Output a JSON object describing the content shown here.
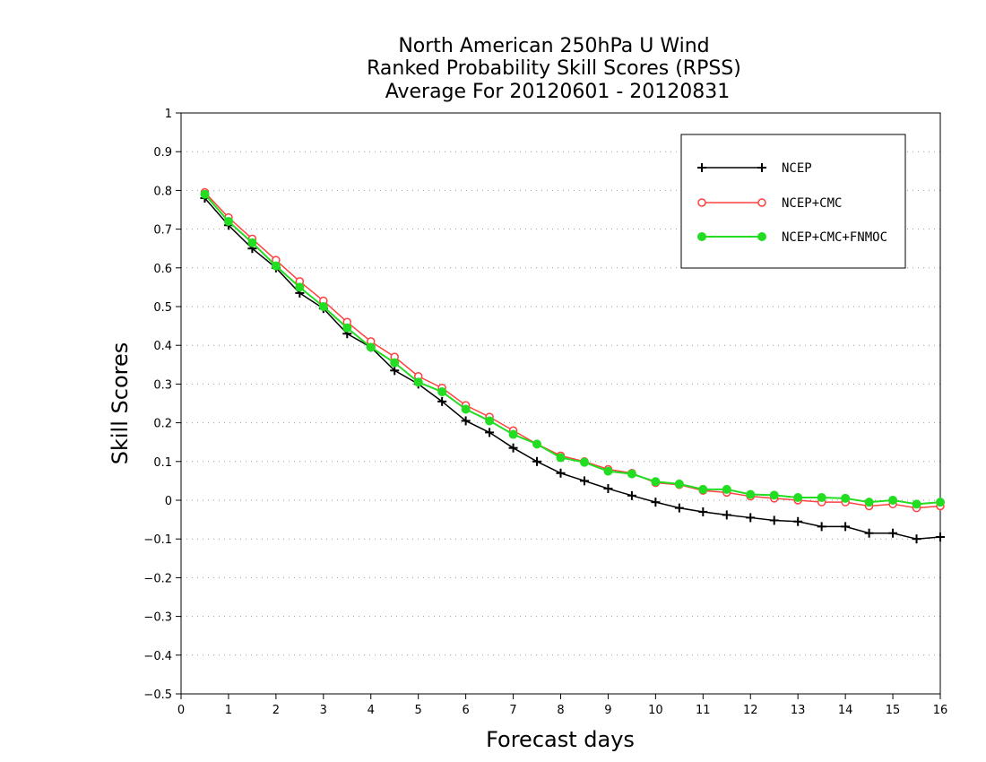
{
  "chart_data": {
    "type": "line",
    "title": [
      "North American 250hPa U Wind",
      "Ranked Probability Skill Scores (RPSS)",
      "Average For 20120601 - 20120831"
    ],
    "xlabel": "Forecast days",
    "ylabel": "Skill Scores",
    "xlim": [
      0,
      16
    ],
    "ylim": [
      -0.5,
      1
    ],
    "xticks": [
      "0",
      "1",
      "2",
      "3",
      "4",
      "5",
      "6",
      "7",
      "8",
      "9",
      "10",
      "11",
      "12",
      "13",
      "14",
      "15",
      "16"
    ],
    "yticks": [
      "1",
      "0.9",
      "0.8",
      "0.7",
      "0.6",
      "0.5",
      "0.4",
      "0.3",
      "0.2",
      "0.1",
      "0",
      "−0.1",
      "−0.2",
      "−0.3",
      "−0.4",
      "−0.5"
    ],
    "grid": true,
    "legend_position": "top-right",
    "x": [
      0.5,
      1,
      1.5,
      2,
      2.5,
      3,
      3.5,
      4,
      4.5,
      5,
      5.5,
      6,
      6.5,
      7,
      7.5,
      8,
      8.5,
      9,
      9.5,
      10,
      10.5,
      11,
      11.5,
      12,
      12.5,
      13,
      13.5,
      14,
      14.5,
      15,
      15.5,
      16
    ],
    "series": [
      {
        "name": "NCEP",
        "color": "#000000",
        "marker": "plus",
        "values": [
          0.78,
          0.71,
          0.65,
          0.6,
          0.535,
          0.495,
          0.43,
          0.395,
          0.335,
          0.3,
          0.255,
          0.205,
          0.175,
          0.135,
          0.1,
          0.07,
          0.05,
          0.03,
          0.012,
          -0.005,
          -0.02,
          -0.03,
          -0.038,
          -0.045,
          -0.052,
          -0.055,
          -0.068,
          -0.068,
          -0.085,
          -0.085,
          -0.1,
          -0.095
        ]
      },
      {
        "name": "NCEP+CMC",
        "color": "#ff4040",
        "marker": "circle-open",
        "values": [
          0.795,
          0.73,
          0.675,
          0.62,
          0.565,
          0.515,
          0.46,
          0.41,
          0.37,
          0.32,
          0.29,
          0.245,
          0.215,
          0.18,
          0.145,
          0.115,
          0.1,
          0.08,
          0.07,
          0.045,
          0.04,
          0.025,
          0.02,
          0.01,
          0.005,
          0.0,
          -0.005,
          -0.005,
          -0.015,
          -0.01,
          -0.02,
          -0.015
        ]
      },
      {
        "name": "NCEP+CMC+FNMOC",
        "color": "#22dd22",
        "marker": "circle-filled",
        "values": [
          0.79,
          0.72,
          0.665,
          0.605,
          0.55,
          0.5,
          0.445,
          0.395,
          0.355,
          0.305,
          0.28,
          0.235,
          0.205,
          0.17,
          0.145,
          0.11,
          0.098,
          0.075,
          0.068,
          0.048,
          0.042,
          0.028,
          0.028,
          0.015,
          0.013,
          0.007,
          0.007,
          0.005,
          -0.005,
          0.0,
          -0.01,
          -0.005
        ]
      }
    ]
  }
}
